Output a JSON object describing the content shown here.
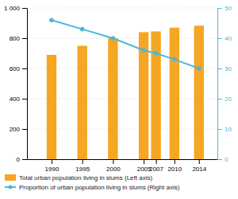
{
  "chart_data": {
    "type": "bar",
    "x": [
      1990,
      1995,
      2000,
      2005,
      2007,
      2010,
      2014
    ],
    "xlim": [
      1986,
      2017
    ],
    "xticks": [
      1990,
      1995,
      2000,
      2005,
      2007,
      2010,
      2014
    ],
    "ylim": [
      0,
      1000
    ],
    "yticks": [
      0,
      200,
      400,
      600,
      800,
      {
        "value": 1000,
        "label": "1 000"
      }
    ],
    "y2lim": [
      0,
      50
    ],
    "y2ticks": [
      0,
      10,
      20,
      30,
      40,
      50
    ],
    "grid": true,
    "legend": "bottom",
    "series": [
      {
        "name": "Total urban population living in slums (Left axis)",
        "type": "bar",
        "color": "#F5A623",
        "values": [
          690,
          750,
          800,
          840,
          845,
          870,
          883
        ]
      },
      {
        "name": "Proportion of urban population living in slums (Right axis)",
        "type": "line",
        "axis": "y2",
        "color": "#4DB8D8",
        "marker": "circle",
        "values": [
          46,
          43,
          40,
          36,
          35,
          33,
          30
        ]
      }
    ]
  }
}
